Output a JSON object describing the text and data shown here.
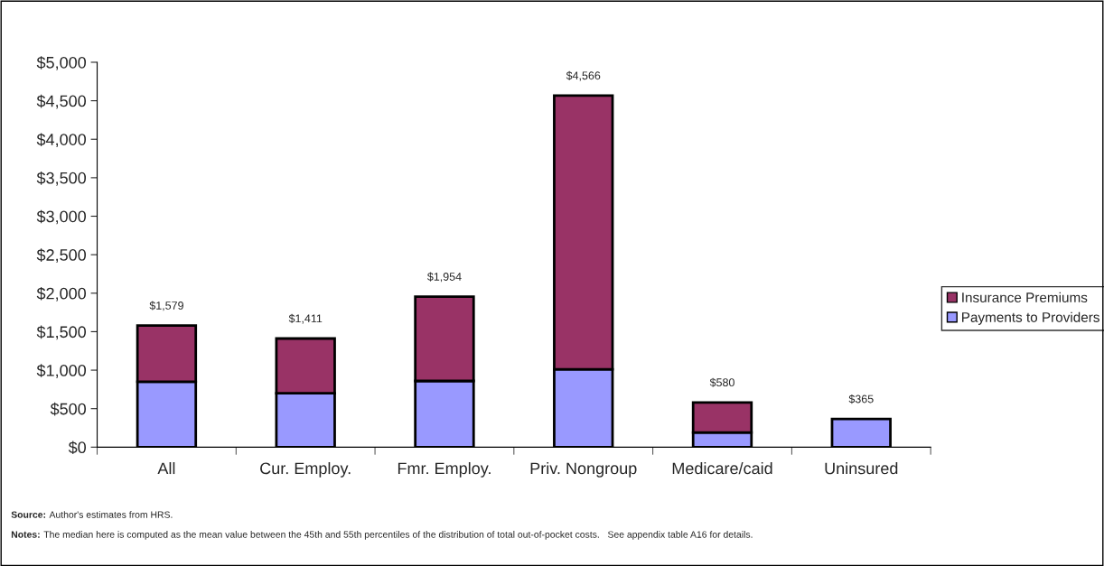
{
  "chart_data": {
    "type": "bar",
    "stacked": true,
    "categories": [
      "All",
      "Cur. Employ.",
      "Fmr. Employ.",
      "Priv. Nongroup",
      "Medicare/caid",
      "Uninsured"
    ],
    "series": [
      {
        "name": "Payments to Providers",
        "color": "#9999ff",
        "values": [
          850,
          700,
          860,
          1010,
          190,
          365
        ]
      },
      {
        "name": "Insurance Premiums",
        "color": "#993366",
        "values": [
          729,
          711,
          1094,
          3556,
          390,
          null
        ]
      }
    ],
    "totals": [
      "$1,579",
      "$1,411",
      "$1,954",
      "$4,566",
      "$580",
      "$365"
    ],
    "ylim": [
      0,
      5000
    ],
    "yticks": [
      {
        "value": 0,
        "label": "$0"
      },
      {
        "value": 500,
        "label": "$500"
      },
      {
        "value": 1000,
        "label": "$1,000"
      },
      {
        "value": 1500,
        "label": "$1,500"
      },
      {
        "value": 2000,
        "label": "$2,000"
      },
      {
        "value": 2500,
        "label": "$2,500"
      },
      {
        "value": 3000,
        "label": "$3,000"
      },
      {
        "value": 3500,
        "label": "$3,500"
      },
      {
        "value": 4000,
        "label": "$4,000"
      },
      {
        "value": 4500,
        "label": "$4,500"
      },
      {
        "value": 5000,
        "label": "$5,000"
      }
    ],
    "grid": false,
    "legend": "right",
    "annotations": [
      "Source: Author's estimates from HRS.",
      "Notes: The median here is computed as the mean value between the 45th and 55th percentiles of the distribution of total out-of-pocket costs.   See appendix table A16 for details."
    ]
  }
}
